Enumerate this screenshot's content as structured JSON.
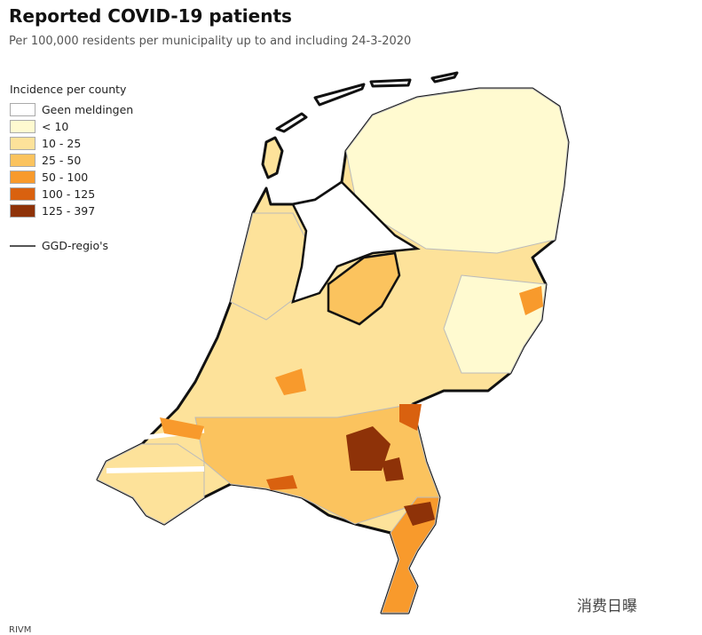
{
  "header": {
    "title": "Reported COVID-19 patients",
    "subtitle": "Per 100,000 residents per municipality up to and including 24-3-2020"
  },
  "legend": {
    "title": "Incidence per county",
    "items": [
      {
        "label": "Geen meldingen",
        "color": "#ffffff"
      },
      {
        "label": "< 10",
        "color": "#fffad0"
      },
      {
        "label": "10 - 25",
        "color": "#fde29a"
      },
      {
        "label": "25 - 50",
        "color": "#fbc35e"
      },
      {
        "label": "50 - 100",
        "color": "#f89a2c"
      },
      {
        "label": "100 - 125",
        "color": "#d9610f"
      },
      {
        "label": "125 - 397",
        "color": "#8e3208"
      }
    ],
    "boundary_label": "GGD-regio's"
  },
  "source": "RIVM",
  "watermark": "消费日曝"
}
